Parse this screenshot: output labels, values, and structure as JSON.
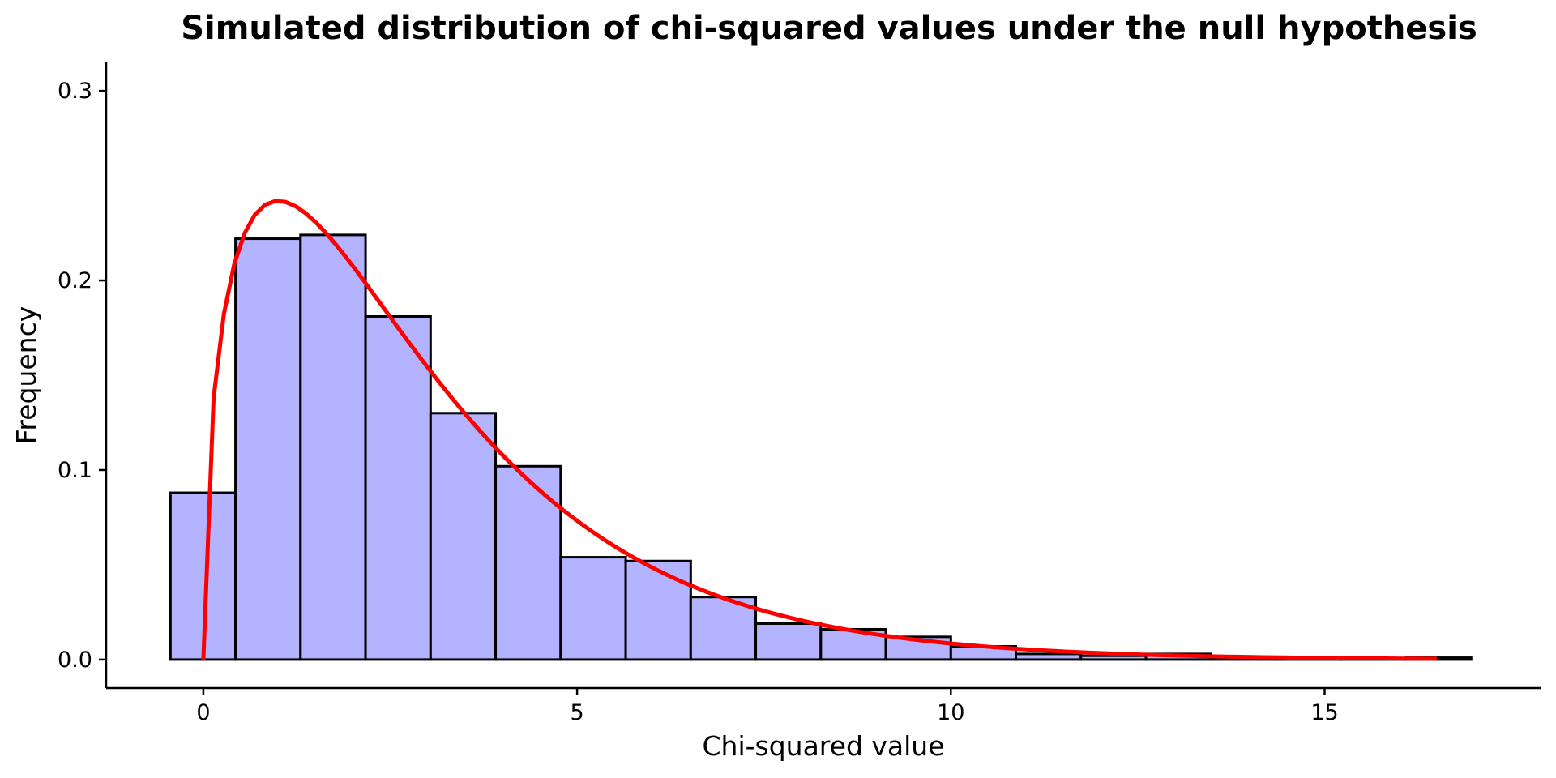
{
  "chart_data": {
    "type": "bar",
    "title": "Simulated distribution of chi-squared values under the null hypothesis",
    "xlabel": "Chi-squared value",
    "ylabel": "Frequency",
    "xlim": [
      -1.3,
      17.9
    ],
    "ylim": [
      -0.015,
      0.315
    ],
    "xticks": [
      0,
      5,
      10,
      15
    ],
    "yticks": [
      0.0,
      0.1,
      0.2,
      0.3
    ],
    "xtick_labels": [
      "0",
      "5",
      "10",
      "15"
    ],
    "ytick_labels": [
      "0.0",
      "0.1",
      "0.2",
      "0.3"
    ],
    "grid": false,
    "legend": "none",
    "bin_edges": [
      -0.44,
      0.43,
      1.3,
      2.17,
      3.04,
      3.91,
      4.78,
      5.65,
      6.52,
      7.39,
      8.26,
      9.13,
      10.0,
      10.87,
      11.74,
      12.61,
      13.48,
      14.35,
      15.22,
      16.09,
      16.96
    ],
    "histogram_values": [
      0.088,
      0.222,
      0.224,
      0.181,
      0.13,
      0.102,
      0.054,
      0.052,
      0.033,
      0.019,
      0.016,
      0.012,
      0.007,
      0.003,
      0.002,
      0.003,
      0.001,
      0.001,
      0.0005,
      0.001
    ],
    "density_curve": {
      "distribution": "chi-squared",
      "df": 3,
      "x_range": [
        0,
        16.5
      ],
      "color": "#ff0000"
    },
    "colors": {
      "bar_fill": "#b3b3ff",
      "bar_edge": "#000000",
      "curve": "#ff0000"
    }
  }
}
